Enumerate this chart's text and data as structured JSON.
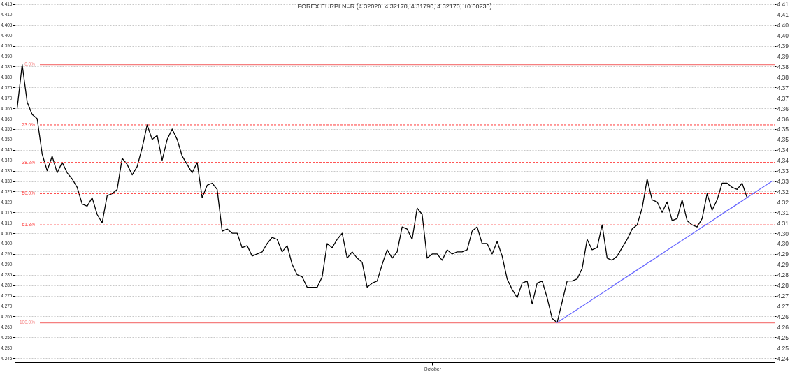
{
  "chart_data": {
    "type": "line",
    "title": "FOREX EURPLN=R (4.32020, 4.32170, 4.31790, 4.32170, +0.00230)",
    "categories": [
      null,
      null,
      null,
      null,
      null,
      null,
      null,
      null,
      null,
      null,
      null,
      null,
      null,
      null,
      null,
      null,
      null,
      null,
      null,
      null,
      null,
      null,
      null,
      null,
      null,
      null,
      null,
      null,
      null,
      null,
      null,
      null,
      null,
      null,
      null,
      null,
      null,
      null,
      null,
      null,
      null,
      null,
      null,
      null,
      null,
      null,
      null,
      null,
      null,
      null,
      null,
      null,
      null,
      null,
      null,
      null,
      null,
      null,
      null,
      null,
      null,
      null,
      null,
      null,
      null,
      null,
      null,
      null,
      null,
      null,
      null,
      null,
      null,
      null,
      null,
      null,
      null,
      null,
      null,
      null,
      null,
      null,
      null,
      "October",
      null,
      null,
      null,
      null,
      null,
      null,
      null,
      null,
      null,
      null,
      null,
      null,
      null,
      null,
      null,
      null,
      null,
      null,
      null,
      null,
      null,
      null,
      null,
      null,
      null,
      null,
      null,
      null,
      null,
      null,
      null,
      null,
      null,
      null,
      null,
      null,
      null,
      null,
      null,
      null,
      null,
      null,
      null,
      null,
      null,
      null,
      null,
      null,
      null,
      null,
      null,
      null,
      null,
      null,
      null,
      null,
      null,
      null,
      null,
      null,
      null,
      null,
      null,
      null,
      null,
      null,
      null,
      null
    ],
    "ylim": [
      4.243,
      4.417
    ],
    "yticks": [
      4.245,
      {
        "value": 4.25,
        "label": "4.250"
      },
      4.255,
      {
        "value": 4.26,
        "label": "4.260"
      },
      4.265,
      {
        "value": 4.27,
        "label": "4.270"
      },
      4.275,
      {
        "value": 4.28,
        "label": "4.280"
      },
      4.285,
      {
        "value": 4.29,
        "label": "4.290"
      },
      4.295,
      {
        "value": 4.3,
        "label": "4.300"
      },
      4.305,
      {
        "value": 4.31,
        "label": "4.310"
      },
      4.315,
      {
        "value": 4.32,
        "label": "4.320"
      },
      4.325,
      {
        "value": 4.33,
        "label": "4.330"
      },
      4.335,
      {
        "value": 4.34,
        "label": "4.340"
      },
      4.345,
      {
        "value": 4.35,
        "label": "4.350"
      },
      4.355,
      {
        "value": 4.36,
        "label": "4.360"
      },
      4.365,
      {
        "value": 4.37,
        "label": "4.370"
      },
      4.375,
      {
        "value": 4.38,
        "label": "4.380"
      },
      4.385,
      {
        "value": 4.39,
        "label": "4.390"
      },
      4.395,
      {
        "value": 4.4,
        "label": "4.400"
      },
      4.405,
      {
        "value": 4.41,
        "label": "4.410"
      },
      4.415
    ],
    "y2lim": [
      4.243,
      4.417
    ],
    "y2ticks": [
      {
        "value": 4.245,
        "label": "4.24"
      },
      4.25,
      {
        "value": 4.255,
        "label": "4.25"
      },
      4.26,
      {
        "value": 4.265,
        "label": "4.26"
      },
      4.27,
      {
        "value": 4.275,
        "label": "4.27"
      },
      4.28,
      {
        "value": 4.285,
        "label": "4.28"
      },
      4.29,
      {
        "value": 4.295,
        "label": "4.29"
      },
      {
        "value": 4.3,
        "label": "4.30"
      },
      {
        "value": 4.305,
        "label": "4.30"
      },
      4.31,
      {
        "value": 4.315,
        "label": "4.31"
      },
      4.32,
      {
        "value": 4.325,
        "label": "4.32"
      },
      4.33,
      {
        "value": 4.335,
        "label": "4.33"
      },
      4.34,
      {
        "value": 4.345,
        "label": "4.34"
      },
      4.35,
      {
        "value": 4.355,
        "label": "4.35"
      },
      4.36,
      {
        "value": 4.365,
        "label": "4.36"
      },
      4.37,
      {
        "value": 4.375,
        "label": "4.37"
      },
      4.38,
      {
        "value": 4.385,
        "label": "4.38"
      },
      4.39,
      {
        "value": 4.395,
        "label": "4.39"
      },
      {
        "value": 4.4,
        "label": "4.40"
      },
      {
        "value": 4.405,
        "label": "4.40"
      },
      4.41,
      {
        "value": 4.415,
        "label": "4.41"
      }
    ],
    "grid": "y",
    "series": [
      {
        "color": "#000000",
        "values": [
          4.365,
          4.386,
          4.368,
          4.362,
          4.36,
          4.343,
          4.335,
          4.342,
          4.334,
          4.339,
          4.334,
          4.331,
          4.327,
          4.319,
          4.318,
          4.322,
          4.314,
          4.31,
          4.323,
          4.324,
          4.326,
          4.341,
          4.338,
          4.333,
          4.337,
          4.346,
          4.357,
          4.35,
          4.352,
          4.34,
          4.35,
          4.355,
          4.35,
          4.342,
          4.338,
          4.334,
          4.339,
          4.322,
          4.328,
          4.329,
          4.326,
          4.306,
          4.307,
          4.305,
          4.305,
          4.298,
          4.299,
          4.294,
          4.295,
          4.296,
          4.3,
          4.303,
          4.302,
          4.296,
          4.299,
          4.29,
          4.285,
          4.284,
          4.279,
          4.279,
          4.279,
          4.284,
          4.3,
          4.298,
          4.302,
          4.305,
          4.293,
          4.296,
          4.293,
          4.291,
          4.279,
          4.281,
          4.282,
          4.29,
          4.297,
          4.293,
          4.296,
          4.308,
          4.307,
          4.302,
          4.317,
          4.314,
          4.293,
          4.295,
          4.295,
          4.292,
          4.297,
          4.295,
          4.296,
          4.296,
          4.297,
          4.306,
          4.308,
          4.3,
          4.3,
          4.295,
          4.301,
          4.294,
          4.283,
          4.278,
          4.274,
          4.281,
          4.282,
          4.271,
          4.281,
          4.282,
          4.274,
          4.264,
          4.262,
          4.272,
          4.282,
          4.282,
          4.283,
          4.288,
          4.302,
          4.297,
          4.298,
          4.309,
          4.293,
          4.292,
          4.294,
          4.298,
          4.302,
          4.307,
          4.309,
          4.317,
          4.331,
          4.321,
          4.32,
          4.315,
          4.32,
          4.311,
          4.312,
          4.321,
          4.311,
          4.309,
          4.308,
          4.312,
          4.324,
          4.316,
          4.321,
          4.329,
          4.329,
          4.327,
          4.326,
          4.329,
          4.322,
          null,
          null,
          null,
          null,
          null
        ]
      },
      {
        "type": "line",
        "color": "#6a6aff",
        "values": [
          null,
          null,
          null,
          null,
          null,
          null,
          null,
          null,
          null,
          null,
          null,
          null,
          null,
          null,
          null,
          null,
          null,
          null,
          null,
          null,
          null,
          null,
          null,
          null,
          null,
          null,
          null,
          null,
          null,
          null,
          null,
          null,
          null,
          null,
          null,
          null,
          null,
          null,
          null,
          null,
          null,
          null,
          null,
          null,
          null,
          null,
          null,
          null,
          null,
          null,
          null,
          null,
          null,
          null,
          null,
          null,
          null,
          null,
          null,
          null,
          null,
          null,
          null,
          null,
          null,
          null,
          null,
          null,
          null,
          null,
          null,
          null,
          null,
          null,
          null,
          null,
          null,
          null,
          null,
          null,
          null,
          null,
          null,
          null,
          null,
          null,
          null,
          null,
          null,
          null,
          null,
          null,
          null,
          null,
          null,
          null,
          null,
          null,
          null,
          null,
          null,
          null,
          null,
          null,
          null,
          null,
          null,
          null,
          4.262,
          4.2636,
          4.2652,
          4.2667,
          4.2683,
          4.2699,
          4.2715,
          4.2731,
          4.2747,
          4.2762,
          4.2778,
          4.2794,
          4.281,
          4.2826,
          4.2841,
          4.2857,
          4.2873,
          4.2889,
          4.2905,
          4.292,
          4.2936,
          4.2952,
          4.2968,
          4.2984,
          4.3,
          4.3015,
          4.3031,
          4.3047,
          4.3063,
          4.3079,
          4.3094,
          4.311,
          4.3126,
          4.3142,
          4.3158,
          4.3173,
          4.3189,
          4.3205,
          4.3221,
          4.3237,
          4.3253,
          4.3268,
          4.3284,
          4.33
        ]
      }
    ],
    "ref_lines": [
      {
        "axis": "y",
        "value": 4.386,
        "color": "#f57f7f",
        "line_style": "solid"
      },
      {
        "axis": "y",
        "value": 4.357,
        "color": "#ff3b3b",
        "line_style": "dashed"
      },
      {
        "axis": "y",
        "value": 4.339,
        "color": "#ff3b3b",
        "line_style": "dashed"
      },
      {
        "axis": "y",
        "value": 4.324,
        "color": "#ff3b3b",
        "line_style": "dashed"
      },
      {
        "axis": "y",
        "value": 4.309,
        "color": "#ff3b3b",
        "line_style": "dashed"
      },
      {
        "axis": "y",
        "value": 4.262,
        "color": "#f57f7f",
        "line_style": "solid"
      }
    ],
    "annotations": [
      "0.0%",
      "23.6%",
      "38.2%",
      "50.0%",
      "61.8%",
      "100.0%"
    ]
  }
}
